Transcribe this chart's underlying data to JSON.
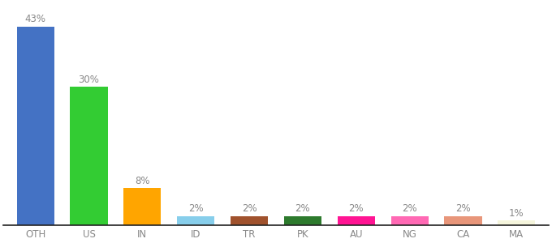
{
  "categories": [
    "OTH",
    "US",
    "IN",
    "ID",
    "TR",
    "PK",
    "AU",
    "NG",
    "CA",
    "MA"
  ],
  "values": [
    43,
    30,
    8,
    2,
    2,
    2,
    2,
    2,
    2,
    1
  ],
  "bar_colors": [
    "#4472C4",
    "#33CC33",
    "#FFA500",
    "#87CEEB",
    "#A0522D",
    "#2D7A2D",
    "#FF1493",
    "#FF69B4",
    "#E8967A",
    "#F5F5DC"
  ],
  "labels": [
    "43%",
    "30%",
    "8%",
    "2%",
    "2%",
    "2%",
    "2%",
    "2%",
    "2%",
    "1%"
  ],
  "ylim": [
    0,
    48
  ],
  "background_color": "#ffffff",
  "label_fontsize": 8.5,
  "tick_fontsize": 8.5,
  "label_color": "#888888",
  "tick_color": "#888888",
  "bar_width": 0.7
}
